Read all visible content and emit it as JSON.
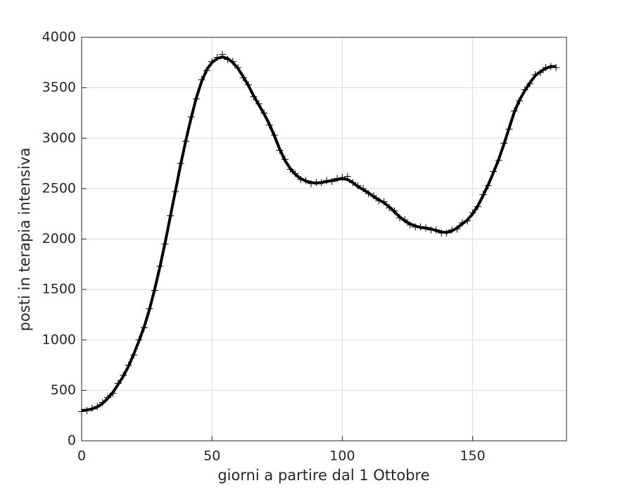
{
  "chart_data": {
    "type": "line",
    "xlabel": "giorni a partire dal 1 Ottobre",
    "ylabel": "posti in terapia intensiva",
    "x": [
      0,
      2,
      4,
      6,
      8,
      10,
      12,
      14,
      16,
      18,
      20,
      22,
      24,
      26,
      28,
      30,
      32,
      34,
      36,
      38,
      40,
      42,
      44,
      46,
      48,
      50,
      52,
      54,
      56,
      58,
      60,
      62,
      64,
      66,
      68,
      70,
      72,
      74,
      76,
      78,
      80,
      82,
      84,
      86,
      88,
      90,
      92,
      94,
      96,
      98,
      100,
      102,
      104,
      106,
      108,
      110,
      112,
      114,
      116,
      118,
      120,
      122,
      124,
      126,
      128,
      130,
      132,
      134,
      136,
      138,
      140,
      142,
      144,
      146,
      148,
      150,
      152,
      154,
      156,
      158,
      160,
      162,
      164,
      166,
      168,
      170,
      172,
      174,
      176,
      178,
      180,
      182
    ],
    "series": [
      {
        "marker": "+",
        "color": "#000000",
        "values": [
          290,
          300,
          320,
          340,
          380,
          430,
          470,
          570,
          650,
          750,
          850,
          1000,
          1120,
          1310,
          1490,
          1730,
          1950,
          2230,
          2470,
          2750,
          2970,
          3210,
          3390,
          3580,
          3670,
          3760,
          3800,
          3830,
          3780,
          3760,
          3700,
          3600,
          3530,
          3410,
          3340,
          3250,
          3130,
          3030,
          2880,
          2790,
          2690,
          2650,
          2590,
          2580,
          2550,
          2560,
          2560,
          2580,
          2570,
          2600,
          2610,
          2620,
          2560,
          2530,
          2500,
          2450,
          2430,
          2380,
          2370,
          2310,
          2280,
          2210,
          2190,
          2140,
          2120,
          2120,
          2110,
          2090,
          2090,
          2060,
          2060,
          2090,
          2100,
          2160,
          2180,
          2260,
          2320,
          2440,
          2530,
          2670,
          2780,
          2950,
          3090,
          3270,
          3370,
          3480,
          3540,
          3630,
          3650,
          3700,
          3710,
          3700
        ]
      },
      {
        "color": "#000000",
        "values": [
          300,
          305,
          315,
          335,
          370,
          420,
          480,
          560,
          640,
          740,
          860,
          990,
          1130,
          1300,
          1500,
          1720,
          1960,
          2220,
          2480,
          2740,
          2980,
          3200,
          3400,
          3560,
          3680,
          3750,
          3790,
          3805,
          3790,
          3750,
          3690,
          3610,
          3520,
          3420,
          3330,
          3240,
          3140,
          3020,
          2890,
          2780,
          2700,
          2640,
          2600,
          2575,
          2560,
          2555,
          2560,
          2570,
          2580,
          2590,
          2600,
          2590,
          2560,
          2520,
          2490,
          2460,
          2420,
          2390,
          2360,
          2320,
          2270,
          2220,
          2180,
          2150,
          2130,
          2115,
          2110,
          2100,
          2085,
          2070,
          2065,
          2080,
          2110,
          2150,
          2190,
          2250,
          2330,
          2430,
          2540,
          2660,
          2790,
          2940,
          3100,
          3260,
          3380,
          3470,
          3550,
          3620,
          3660,
          3690,
          3710,
          3710
        ]
      }
    ],
    "xlim": [
      0,
      186
    ],
    "ylim": [
      0,
      4000
    ],
    "xticks": [
      0,
      50,
      100,
      150
    ],
    "yticks": [
      0,
      500,
      1000,
      1500,
      2000,
      2500,
      3000,
      3500,
      4000
    ],
    "grid": true
  }
}
